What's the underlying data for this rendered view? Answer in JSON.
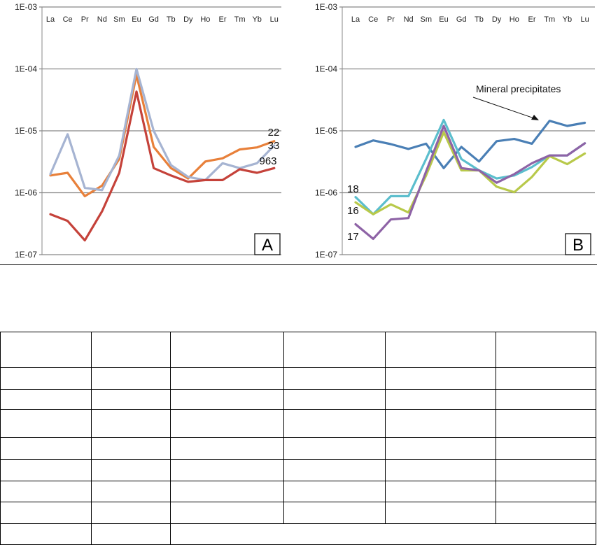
{
  "chart_data": [
    {
      "type": "line",
      "panel_label": "A",
      "y_scale": "log",
      "ylim": [
        1e-07,
        0.001
      ],
      "yticks": [
        "1E-03",
        "1E-04",
        "1E-05",
        "1E-06",
        "1E-07"
      ],
      "categories": [
        "La",
        "Ce",
        "Pr",
        "Nd",
        "Sm",
        "Eu",
        "Gd",
        "Tb",
        "Dy",
        "Ho",
        "Er",
        "Tm",
        "Yb",
        "Lu"
      ],
      "series": [
        {
          "name": "22",
          "color": "#e8803a",
          "values": [
            1.9e-06,
            2.1e-06,
            8.8e-07,
            1.3e-06,
            3.5e-06,
            8e-05,
            5.5e-06,
            2.5e-06,
            1.7e-06,
            3.2e-06,
            3.6e-06,
            5e-06,
            5.4e-06,
            6.8e-06
          ]
        },
        {
          "name": "33",
          "color": "#a6b4d2",
          "values": [
            2e-06,
            8.8e-06,
            1.2e-06,
            1.1e-06,
            4e-06,
            0.0001,
            1e-05,
            2.8e-06,
            1.8e-06,
            1.6e-06,
            3e-06,
            2.5e-06,
            3e-06,
            5.8e-06
          ]
        },
        {
          "name": "963",
          "color": "#c5423a",
          "values": [
            4.5e-07,
            3.5e-07,
            1.7e-07,
            5e-07,
            2.1e-06,
            4.3e-05,
            2.5e-06,
            1.9e-06,
            1.5e-06,
            1.6e-06,
            1.6e-06,
            2.4e-06,
            2.1e-06,
            2.5e-06
          ]
        }
      ]
    },
    {
      "type": "line",
      "panel_label": "B",
      "y_scale": "log",
      "ylim": [
        1e-07,
        0.001
      ],
      "yticks": [
        "1E-03",
        "1E-04",
        "1E-05",
        "1E-06",
        "1E-07"
      ],
      "categories": [
        "La",
        "Ce",
        "Pr",
        "Nd",
        "Sm",
        "Eu",
        "Gd",
        "Tb",
        "Dy",
        "Ho",
        "Er",
        "Tm",
        "Yb",
        "Lu"
      ],
      "annotation": "Mineral precipitates",
      "series": [
        {
          "name": "",
          "color": "#4a7fb5",
          "values": [
            5.5e-06,
            7e-06,
            6.1e-06,
            5.1e-06,
            6.2e-06,
            2.5e-06,
            5.5e-06,
            3.2e-06,
            6.8e-06,
            7.4e-06,
            6.2e-06,
            1.45e-05,
            1.2e-05,
            1.35e-05
          ]
        },
        {
          "name": "18",
          "color": "#5bbecd",
          "values": [
            8.5e-07,
            4.5e-07,
            8.8e-07,
            8.8e-07,
            3.5e-06,
            1.5e-05,
            3.5e-06,
            2.3e-06,
            1.7e-06,
            1.9e-06,
            2.6e-06,
            4e-06,
            4e-06,
            6.3e-06
          ]
        },
        {
          "name": "16",
          "color": "#b8c94a",
          "values": [
            7e-07,
            4.5e-07,
            6.5e-07,
            4.8e-07,
            1.9e-06,
            9.5e-06,
            2.3e-06,
            2.3e-06,
            1.25e-06,
            1.02e-06,
            1.8e-06,
            3.9e-06,
            2.9e-06,
            4.3e-06
          ]
        },
        {
          "name": "17",
          "color": "#8e63a6",
          "values": [
            3.1e-07,
            1.8e-07,
            3.7e-07,
            3.9e-07,
            2.2e-06,
            1.2e-05,
            2.5e-06,
            2.3e-06,
            1.45e-06,
            2e-06,
            3e-06,
            4e-06,
            4e-06,
            6.3e-06
          ]
        }
      ]
    }
  ],
  "table": {
    "rows": [
      [
        "",
        "",
        "",
        "",
        "",
        ""
      ],
      [
        "",
        "",
        "",
        "",
        "",
        ""
      ],
      [
        "",
        "",
        "",
        "",
        "",
        ""
      ],
      [
        "",
        "",
        "",
        "",
        "",
        ""
      ],
      [
        "",
        "",
        "",
        "",
        "",
        ""
      ],
      [
        "",
        "",
        "",
        "",
        "",
        ""
      ],
      [
        "",
        "",
        "",
        "",
        "",
        ""
      ],
      [
        "",
        "",
        "",
        "",
        "",
        ""
      ],
      [
        "",
        "",
        ""
      ]
    ]
  }
}
